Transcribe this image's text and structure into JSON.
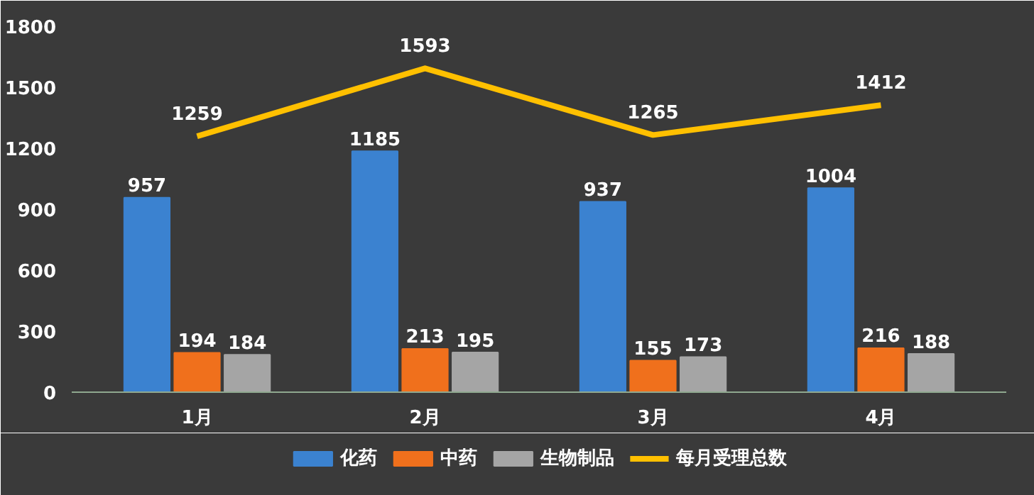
{
  "chart_data": {
    "type": "bar",
    "categories": [
      "1月",
      "2月",
      "3月",
      "4月"
    ],
    "series": [
      {
        "name": "化药",
        "color": "#3b82d0",
        "values": [
          957,
          1185,
          937,
          1004
        ]
      },
      {
        "name": "中药",
        "color": "#f0701c",
        "values": [
          194,
          213,
          155,
          216
        ]
      },
      {
        "name": "生物制品",
        "color": "#a5a5a5",
        "values": [
          184,
          195,
          173,
          188
        ]
      },
      {
        "name": "每月受理总数",
        "type": "line",
        "color": "#ffc000",
        "values": [
          1259,
          1593,
          1265,
          1412
        ]
      }
    ],
    "ylim": [
      0,
      1800
    ],
    "yticks": [
      0,
      300,
      600,
      900,
      1200,
      1500,
      1800
    ],
    "grid": false,
    "legend": "bottom",
    "data_labels": true,
    "marker": "none"
  }
}
